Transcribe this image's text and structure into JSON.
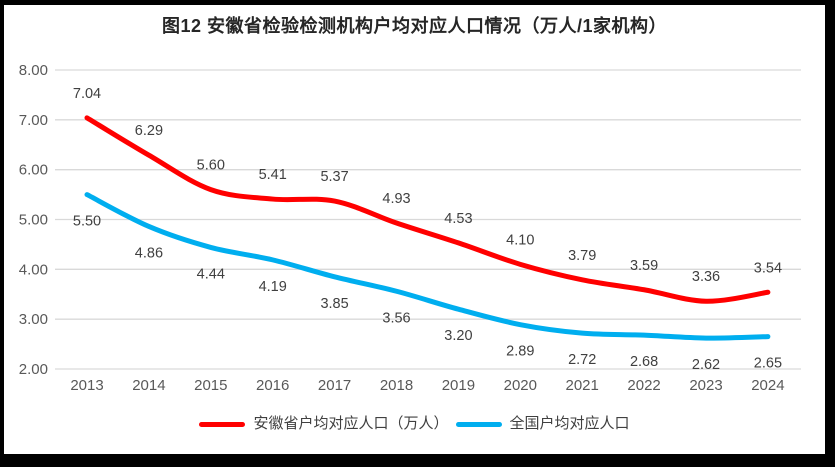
{
  "chart_data": {
    "type": "line",
    "title": "图12 安徽省检验检测机构户均对应人口情况（万人/1家机构）",
    "categories": [
      "2013",
      "2014",
      "2015",
      "2016",
      "2017",
      "2018",
      "2019",
      "2020",
      "2021",
      "2022",
      "2023",
      "2024"
    ],
    "series": [
      {
        "name": "安徽省户均对应人口（万人）",
        "color": "#FF0000",
        "values": [
          7.04,
          6.29,
          5.6,
          5.41,
          5.37,
          4.93,
          4.53,
          4.1,
          3.79,
          3.59,
          3.36,
          3.54
        ],
        "label_position": "above"
      },
      {
        "name": "全国户均对应人口",
        "color": "#00AEEF",
        "values": [
          5.5,
          4.86,
          4.44,
          4.19,
          3.85,
          3.56,
          3.2,
          2.89,
          2.72,
          2.68,
          2.62,
          2.65
        ],
        "label_position": "below"
      }
    ],
    "y_axis": {
      "min": 2,
      "max": 8,
      "step": 1,
      "tick_labels": [
        "8.00",
        "7.00",
        "6.00",
        "5.00",
        "4.00",
        "3.00",
        "2.00"
      ]
    },
    "x_axis": {
      "label_rotation": 0
    },
    "grid": true,
    "smoothed_lines": true,
    "legend_position": "bottom",
    "label_decimals": 2,
    "colors": {
      "gridline": "#D9D9D9",
      "tick_text": "#595959",
      "data_label_text": "#404040",
      "title_text": "#262626",
      "background": "#FFFFFF",
      "frame": "#000000"
    }
  }
}
